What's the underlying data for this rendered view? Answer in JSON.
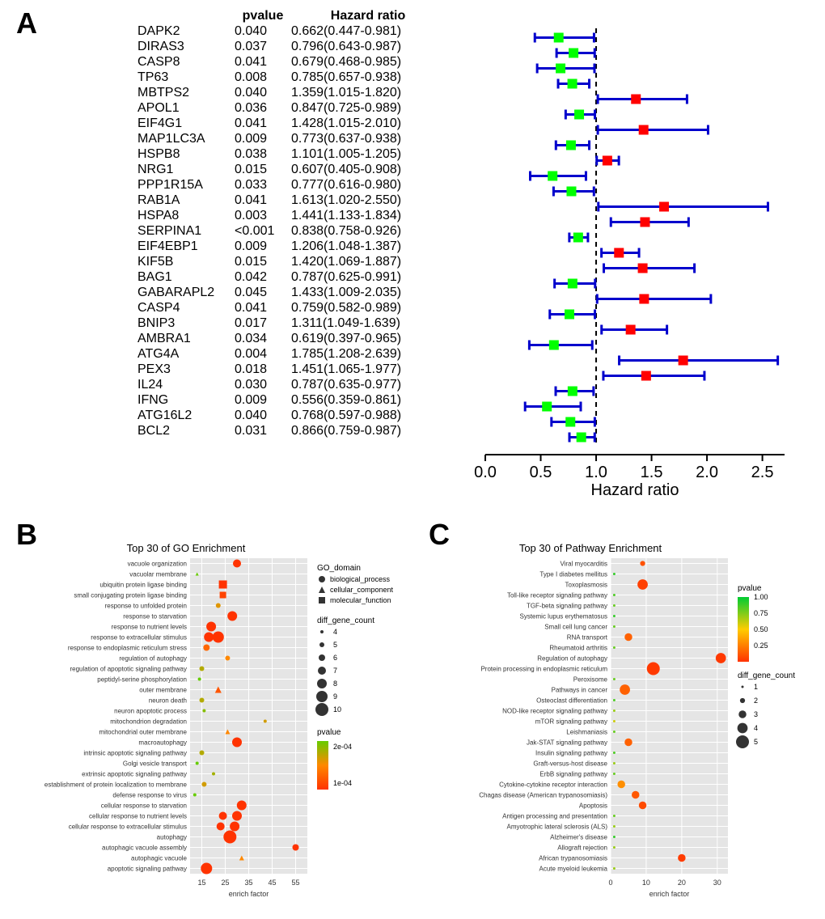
{
  "labels": {
    "A": "A",
    "B": "B",
    "C": "C"
  },
  "panelA": {
    "headers": {
      "gene": "",
      "pvalue": "pvalue",
      "hr": "Hazard ratio"
    },
    "xlabel": "Hazard ratio",
    "xlim": [
      0.0,
      2.7
    ],
    "xticks": [
      0.0,
      0.5,
      1.0,
      1.5,
      2.0,
      2.5
    ],
    "ref_line": 1.0,
    "colors": {
      "low": "#00ff00",
      "high": "#ff0000",
      "whisker": "#0000cc",
      "axis": "#000000",
      "ref": "#000000"
    },
    "marker_size": 12,
    "whisker_cap": 6,
    "rows": [
      {
        "gene": "DAPK2",
        "pvalue": "0.040",
        "hr_text": "0.662(0.447-0.981)",
        "hr": 0.662,
        "lo": 0.447,
        "hi": 0.981
      },
      {
        "gene": "DIRAS3",
        "pvalue": "0.037",
        "hr_text": "0.796(0.643-0.987)",
        "hr": 0.796,
        "lo": 0.643,
        "hi": 0.987
      },
      {
        "gene": "CASP8",
        "pvalue": "0.041",
        "hr_text": "0.679(0.468-0.985)",
        "hr": 0.679,
        "lo": 0.468,
        "hi": 0.985
      },
      {
        "gene": "TP63",
        "pvalue": "0.008",
        "hr_text": "0.785(0.657-0.938)",
        "hr": 0.785,
        "lo": 0.657,
        "hi": 0.938
      },
      {
        "gene": "MBTPS2",
        "pvalue": "0.040",
        "hr_text": "1.359(1.015-1.820)",
        "hr": 1.359,
        "lo": 1.015,
        "hi": 1.82
      },
      {
        "gene": "APOL1",
        "pvalue": "0.036",
        "hr_text": "0.847(0.725-0.989)",
        "hr": 0.847,
        "lo": 0.725,
        "hi": 0.989
      },
      {
        "gene": "EIF4G1",
        "pvalue": "0.041",
        "hr_text": "1.428(1.015-2.010)",
        "hr": 1.428,
        "lo": 1.015,
        "hi": 2.01
      },
      {
        "gene": "MAP1LC3A",
        "pvalue": "0.009",
        "hr_text": "0.773(0.637-0.938)",
        "hr": 0.773,
        "lo": 0.637,
        "hi": 0.938
      },
      {
        "gene": "HSPB8",
        "pvalue": "0.038",
        "hr_text": "1.101(1.005-1.205)",
        "hr": 1.101,
        "lo": 1.005,
        "hi": 1.205
      },
      {
        "gene": "NRG1",
        "pvalue": "0.015",
        "hr_text": "0.607(0.405-0.908)",
        "hr": 0.607,
        "lo": 0.405,
        "hi": 0.908
      },
      {
        "gene": "PPP1R15A",
        "pvalue": "0.033",
        "hr_text": "0.777(0.616-0.980)",
        "hr": 0.777,
        "lo": 0.616,
        "hi": 0.98
      },
      {
        "gene": "RAB1A",
        "pvalue": "0.041",
        "hr_text": "1.613(1.020-2.550)",
        "hr": 1.613,
        "lo": 1.02,
        "hi": 2.55
      },
      {
        "gene": "HSPA8",
        "pvalue": "0.003",
        "hr_text": "1.441(1.133-1.834)",
        "hr": 1.441,
        "lo": 1.133,
        "hi": 1.834
      },
      {
        "gene": "SERPINA1",
        "pvalue": "<0.001",
        "hr_text": "0.838(0.758-0.926)",
        "hr": 0.838,
        "lo": 0.758,
        "hi": 0.926
      },
      {
        "gene": "EIF4EBP1",
        "pvalue": "0.009",
        "hr_text": "1.206(1.048-1.387)",
        "hr": 1.206,
        "lo": 1.048,
        "hi": 1.387
      },
      {
        "gene": "KIF5B",
        "pvalue": "0.015",
        "hr_text": "1.420(1.069-1.887)",
        "hr": 1.42,
        "lo": 1.069,
        "hi": 1.887
      },
      {
        "gene": "BAG1",
        "pvalue": "0.042",
        "hr_text": "0.787(0.625-0.991)",
        "hr": 0.787,
        "lo": 0.625,
        "hi": 0.991
      },
      {
        "gene": "GABARAPL2",
        "pvalue": "0.045",
        "hr_text": "1.433(1.009-2.035)",
        "hr": 1.433,
        "lo": 1.009,
        "hi": 2.035
      },
      {
        "gene": "CASP4",
        "pvalue": "0.041",
        "hr_text": "0.759(0.582-0.989)",
        "hr": 0.759,
        "lo": 0.582,
        "hi": 0.989
      },
      {
        "gene": "BNIP3",
        "pvalue": "0.017",
        "hr_text": "1.311(1.049-1.639)",
        "hr": 1.311,
        "lo": 1.049,
        "hi": 1.639
      },
      {
        "gene": "AMBRA1",
        "pvalue": "0.034",
        "hr_text": "0.619(0.397-0.965)",
        "hr": 0.619,
        "lo": 0.397,
        "hi": 0.965
      },
      {
        "gene": "ATG4A",
        "pvalue": "0.004",
        "hr_text": "1.785(1.208-2.639)",
        "hr": 1.785,
        "lo": 1.208,
        "hi": 2.639
      },
      {
        "gene": "PEX3",
        "pvalue": "0.018",
        "hr_text": "1.451(1.065-1.977)",
        "hr": 1.451,
        "lo": 1.065,
        "hi": 1.977
      },
      {
        "gene": "IL24",
        "pvalue": "0.030",
        "hr_text": "0.787(0.635-0.977)",
        "hr": 0.787,
        "lo": 0.635,
        "hi": 0.977
      },
      {
        "gene": "IFNG",
        "pvalue": "0.009",
        "hr_text": "0.556(0.359-0.861)",
        "hr": 0.556,
        "lo": 0.359,
        "hi": 0.861
      },
      {
        "gene": "ATG16L2",
        "pvalue": "0.040",
        "hr_text": "0.768(0.597-0.988)",
        "hr": 0.768,
        "lo": 0.597,
        "hi": 0.988
      },
      {
        "gene": "BCL2",
        "pvalue": "0.031",
        "hr_text": "0.866(0.759-0.987)",
        "hr": 0.866,
        "lo": 0.759,
        "hi": 0.987
      }
    ]
  },
  "panelB": {
    "title": "Top 30 of GO Enrichment",
    "xlabel": "enrich factor",
    "xlim": [
      10,
      60
    ],
    "xticks": [
      15,
      25,
      35,
      45,
      55
    ],
    "plot_bg": "#e5e5e5",
    "grid_color": "#ffffff",
    "legends": {
      "shape": {
        "title": "GO_domain",
        "items": [
          {
            "label": "biological_process",
            "shape": "circle"
          },
          {
            "label": "cellular_component",
            "shape": "triangle"
          },
          {
            "label": "molecular_function",
            "shape": "square"
          }
        ]
      },
      "size": {
        "title": "diff_gene_count",
        "items": [
          4,
          5,
          6,
          7,
          8,
          9,
          10
        ],
        "rmin": 2,
        "rmax": 8
      },
      "color": {
        "title": "pvalue",
        "stops": [
          {
            "v": 5e-05,
            "c": "#ff3300"
          },
          {
            "v": 0.0001,
            "c": "#ff8800"
          },
          {
            "v": 0.0002,
            "c": "#66cc00"
          }
        ]
      }
    },
    "categories": [
      "vacuole organization",
      "vacuolar membrane",
      "ubiquitin protein ligase binding",
      "small conjugating protein ligase binding",
      "response to unfolded protein",
      "response to starvation",
      "response to nutrient levels",
      "response to extracellular stimulus",
      "response to endoplasmic reticulum stress",
      "regulation of autophagy",
      "regulation of apoptotic signaling pathway",
      "peptidyl-serine phosphorylation",
      "outer membrane",
      "neuron death",
      "neuron apoptotic process",
      "mitochondrion degradation",
      "mitochondrial outer membrane",
      "macroautophagy",
      "intrinsic apoptotic signaling pathway",
      "Golgi vesicle transport",
      "extrinsic apoptotic signaling pathway",
      "establishment of protein localization to membrane",
      "defense response to virus",
      "cellular response to starvation",
      "cellular response to nutrient levels",
      "cellular response to extracellular stimulus",
      "autophagy",
      "autophagic vacuole assembly",
      "autophagic vacuole",
      "apoptotic signaling pathway"
    ],
    "points": [
      {
        "cat": 0,
        "x": 30,
        "shape": "circle",
        "count": 7,
        "p": 5e-05
      },
      {
        "cat": 1,
        "x": 13,
        "shape": "triangle",
        "count": 4,
        "p": 0.0002
      },
      {
        "cat": 2,
        "x": 24,
        "shape": "square",
        "count": 7,
        "p": 5e-05
      },
      {
        "cat": 3,
        "x": 24,
        "shape": "square",
        "count": 6,
        "p": 6e-05
      },
      {
        "cat": 4,
        "x": 22,
        "shape": "circle",
        "count": 5,
        "p": 0.00012
      },
      {
        "cat": 5,
        "x": 28,
        "shape": "circle",
        "count": 8,
        "p": 4e-05
      },
      {
        "cat": 6,
        "x": 19,
        "shape": "circle",
        "count": 8,
        "p": 4e-05
      },
      {
        "cat": 7,
        "x": 18,
        "shape": "circle",
        "count": 8,
        "p": 4e-05
      },
      {
        "cat": 7,
        "x": 22,
        "shape": "circle",
        "count": 9,
        "p": 4e-05
      },
      {
        "cat": 8,
        "x": 17,
        "shape": "circle",
        "count": 6,
        "p": 8e-05
      },
      {
        "cat": 9,
        "x": 26,
        "shape": "circle",
        "count": 5,
        "p": 0.0001
      },
      {
        "cat": 10,
        "x": 15,
        "shape": "circle",
        "count": 5,
        "p": 0.00015
      },
      {
        "cat": 11,
        "x": 14,
        "shape": "circle",
        "count": 4,
        "p": 0.0002
      },
      {
        "cat": 12,
        "x": 22,
        "shape": "triangle",
        "count": 6,
        "p": 7e-05
      },
      {
        "cat": 13,
        "x": 15,
        "shape": "circle",
        "count": 5,
        "p": 0.00015
      },
      {
        "cat": 14,
        "x": 16,
        "shape": "circle",
        "count": 4,
        "p": 0.00018
      },
      {
        "cat": 15,
        "x": 42,
        "shape": "circle",
        "count": 4,
        "p": 0.00013
      },
      {
        "cat": 16,
        "x": 26,
        "shape": "triangle",
        "count": 5,
        "p": 0.0001
      },
      {
        "cat": 17,
        "x": 30,
        "shape": "circle",
        "count": 8,
        "p": 4e-05
      },
      {
        "cat": 18,
        "x": 15,
        "shape": "circle",
        "count": 5,
        "p": 0.00015
      },
      {
        "cat": 19,
        "x": 13,
        "shape": "circle",
        "count": 4,
        "p": 0.0002
      },
      {
        "cat": 20,
        "x": 20,
        "shape": "circle",
        "count": 4,
        "p": 0.00016
      },
      {
        "cat": 21,
        "x": 16,
        "shape": "circle",
        "count": 5,
        "p": 0.00013
      },
      {
        "cat": 22,
        "x": 12,
        "shape": "circle",
        "count": 4,
        "p": 0.00022
      },
      {
        "cat": 23,
        "x": 32,
        "shape": "circle",
        "count": 8,
        "p": 4e-05
      },
      {
        "cat": 24,
        "x": 24,
        "shape": "circle",
        "count": 7,
        "p": 5e-05
      },
      {
        "cat": 24,
        "x": 30,
        "shape": "circle",
        "count": 8,
        "p": 4e-05
      },
      {
        "cat": 25,
        "x": 23,
        "shape": "circle",
        "count": 7,
        "p": 5e-05
      },
      {
        "cat": 25,
        "x": 29,
        "shape": "circle",
        "count": 8,
        "p": 4e-05
      },
      {
        "cat": 26,
        "x": 27,
        "shape": "circle",
        "count": 10,
        "p": 3e-05
      },
      {
        "cat": 27,
        "x": 55,
        "shape": "circle",
        "count": 6,
        "p": 5e-05
      },
      {
        "cat": 28,
        "x": 32,
        "shape": "triangle",
        "count": 5,
        "p": 0.0001
      },
      {
        "cat": 29,
        "x": 17,
        "shape": "circle",
        "count": 9,
        "p": 4e-05
      }
    ]
  },
  "panelC": {
    "title": "Top 30 of Pathway Enrichment",
    "xlabel": "enrich factor",
    "xlim": [
      0,
      33
    ],
    "xticks": [
      0,
      10,
      20,
      30
    ],
    "plot_bg": "#e5e5e5",
    "grid_color": "#ffffff",
    "legends": {
      "size": {
        "title": "diff_gene_count",
        "items": [
          1,
          2,
          3,
          4,
          5
        ],
        "rmin": 1.5,
        "rmax": 8
      },
      "color": {
        "title": "pvalue",
        "ticks": [
          0.25,
          0.5,
          0.75,
          1.0
        ],
        "stops": [
          {
            "v": 0,
            "c": "#ff3300"
          },
          {
            "v": 0.5,
            "c": "#ffcc00"
          },
          {
            "v": 1,
            "c": "#00cc33"
          }
        ]
      }
    },
    "categories": [
      "Viral myocarditis",
      "Type I diabetes mellitus",
      "Toxoplasmosis",
      "Toll-like receptor signaling pathway",
      "TGF-beta signaling pathway",
      "Systemic lupus erythematosus",
      "Small cell lung cancer",
      "RNA transport",
      "Rheumatoid arthritis",
      "Regulation of autophagy",
      "Protein processing in endoplasmic reticulum",
      "Peroxisome",
      "Pathways in cancer",
      "Osteoclast differentiation",
      "NOD-like receptor signaling pathway",
      "mTOR signaling pathway",
      "Leishmaniasis",
      "Jak-STAT signaling pathway",
      "Insulin signaling pathway",
      "Graft-versus-host disease",
      "ErbB signaling pathway",
      "Cytokine-cytokine receptor interaction",
      "Chagas disease (American trypanosomiasis)",
      "Apoptosis",
      "Antigen processing and presentation",
      "Amyotrophic lateral sclerosis (ALS)",
      "Alzheimer's disease",
      "Allograft rejection",
      "African trypanosomiasis",
      "Acute myeloid leukemia"
    ],
    "points": [
      {
        "cat": 0,
        "x": 9,
        "count": 2,
        "p": 0.1
      },
      {
        "cat": 1,
        "x": 1,
        "count": 1,
        "p": 0.9
      },
      {
        "cat": 2,
        "x": 9,
        "count": 4,
        "p": 0.04
      },
      {
        "cat": 3,
        "x": 1,
        "count": 1,
        "p": 0.85
      },
      {
        "cat": 4,
        "x": 1,
        "count": 1,
        "p": 0.8
      },
      {
        "cat": 5,
        "x": 1,
        "count": 1,
        "p": 0.9
      },
      {
        "cat": 6,
        "x": 1,
        "count": 1,
        "p": 0.8
      },
      {
        "cat": 7,
        "x": 5,
        "count": 3,
        "p": 0.15
      },
      {
        "cat": 8,
        "x": 1,
        "count": 1,
        "p": 0.8
      },
      {
        "cat": 9,
        "x": 31,
        "count": 4,
        "p": 0.02
      },
      {
        "cat": 10,
        "x": 12,
        "count": 5,
        "p": 0.02
      },
      {
        "cat": 11,
        "x": 1,
        "count": 1,
        "p": 0.8
      },
      {
        "cat": 12,
        "x": 4,
        "count": 4,
        "p": 0.15
      },
      {
        "cat": 13,
        "x": 1,
        "count": 1,
        "p": 0.85
      },
      {
        "cat": 14,
        "x": 1,
        "count": 1,
        "p": 0.7
      },
      {
        "cat": 15,
        "x": 1,
        "count": 1,
        "p": 0.6
      },
      {
        "cat": 16,
        "x": 1,
        "count": 1,
        "p": 0.8
      },
      {
        "cat": 17,
        "x": 5,
        "count": 3,
        "p": 0.15
      },
      {
        "cat": 18,
        "x": 1,
        "count": 1,
        "p": 0.85
      },
      {
        "cat": 19,
        "x": 1,
        "count": 1,
        "p": 0.7
      },
      {
        "cat": 20,
        "x": 1,
        "count": 1,
        "p": 0.8
      },
      {
        "cat": 21,
        "x": 3,
        "count": 3,
        "p": 0.3
      },
      {
        "cat": 22,
        "x": 7,
        "count": 3,
        "p": 0.12
      },
      {
        "cat": 23,
        "x": 9,
        "count": 3,
        "p": 0.08
      },
      {
        "cat": 24,
        "x": 1,
        "count": 1,
        "p": 0.8
      },
      {
        "cat": 25,
        "x": 1,
        "count": 1,
        "p": 0.7
      },
      {
        "cat": 26,
        "x": 1,
        "count": 1,
        "p": 0.9
      },
      {
        "cat": 27,
        "x": 1,
        "count": 1,
        "p": 0.7
      },
      {
        "cat": 28,
        "x": 20,
        "count": 3,
        "p": 0.03
      },
      {
        "cat": 29,
        "x": 1,
        "count": 1,
        "p": 0.7
      }
    ]
  }
}
